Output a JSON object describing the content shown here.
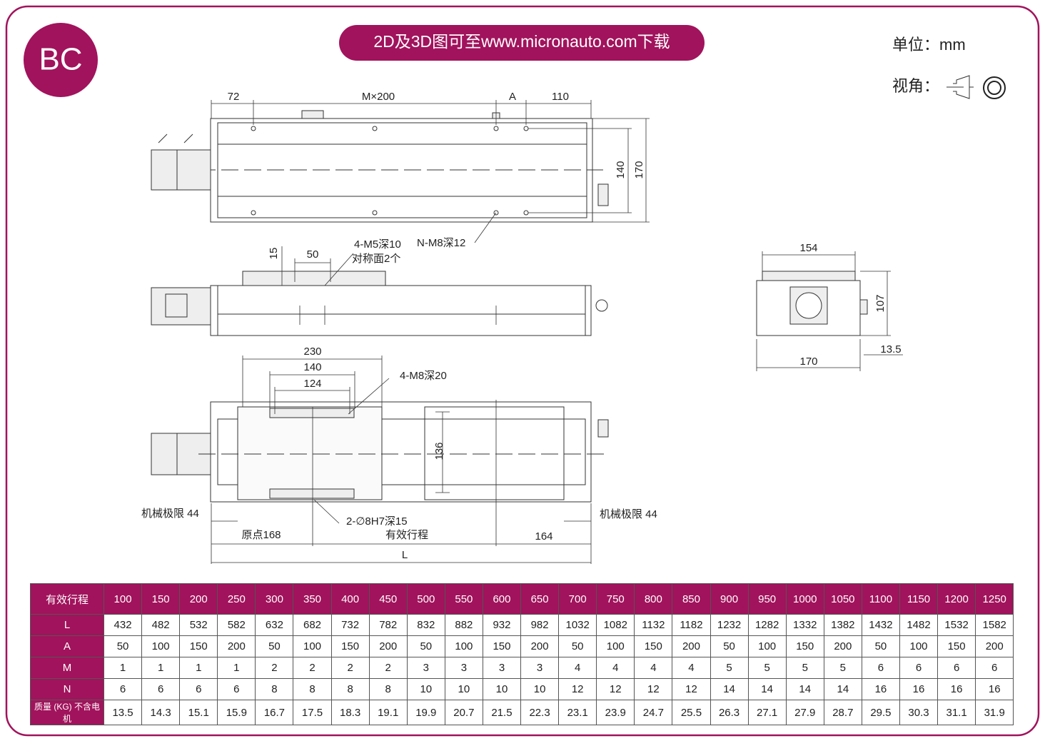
{
  "header": {
    "badge": "BC",
    "banner": "2D及3D图可至www.micronauto.com下载",
    "unit": "单位：mm",
    "view": "视角："
  },
  "top_view": {
    "dim_72": "72",
    "dim_m200": "M×200",
    "dim_a": "A",
    "dim_110": "110",
    "dim_140": "140",
    "dim_170": "170",
    "hole_note": "N-M8深12"
  },
  "side_view": {
    "dim_15": "15",
    "dim_50": "50",
    "hole_note": "4-M5深10",
    "hole_note2": "对称面2个"
  },
  "end_view": {
    "dim_154": "154",
    "dim_107": "107",
    "dim_13_5": "13.5",
    "dim_170": "170"
  },
  "bottom_view": {
    "dim_230": "230",
    "dim_140": "140",
    "dim_124": "124",
    "hole_note": "4-M8深20",
    "dim_136": "136",
    "limit_left": "机械极限 44",
    "limit_right": "机械极限 44",
    "pin_note": "2-∅8H7深15",
    "origin": "原点168",
    "stroke": "有效行程",
    "dim_164": "164",
    "dim_l": "L"
  },
  "table": {
    "rows": [
      [
        "有效行程",
        100,
        150,
        200,
        250,
        300,
        350,
        400,
        450,
        500,
        550,
        600,
        650,
        700,
        750,
        800,
        850,
        900,
        950,
        1000,
        1050,
        1100,
        1150,
        1200,
        1250
      ],
      [
        "L",
        432,
        482,
        532,
        582,
        632,
        682,
        732,
        782,
        832,
        882,
        932,
        982,
        1032,
        1082,
        1132,
        1182,
        1232,
        1282,
        1332,
        1382,
        1432,
        1482,
        1532,
        1582
      ],
      [
        "A",
        50,
        100,
        150,
        200,
        50,
        100,
        150,
        200,
        50,
        100,
        150,
        200,
        50,
        100,
        150,
        200,
        50,
        100,
        150,
        200,
        50,
        100,
        150,
        200
      ],
      [
        "M",
        1,
        1,
        1,
        1,
        2,
        2,
        2,
        2,
        3,
        3,
        3,
        3,
        4,
        4,
        4,
        4,
        5,
        5,
        5,
        5,
        6,
        6,
        6,
        6
      ],
      [
        "N",
        6,
        6,
        6,
        6,
        8,
        8,
        8,
        8,
        10,
        10,
        10,
        10,
        12,
        12,
        12,
        12,
        14,
        14,
        14,
        14,
        16,
        16,
        16,
        16
      ],
      [
        "质量 (KG) 不含电机",
        13.5,
        14.3,
        15.1,
        15.9,
        16.7,
        17.5,
        18.3,
        19.1,
        19.9,
        20.7,
        21.5,
        22.3,
        23.1,
        23.9,
        24.7,
        25.5,
        26.3,
        27.1,
        27.9,
        28.7,
        29.5,
        30.3,
        31.1,
        31.9
      ]
    ]
  }
}
